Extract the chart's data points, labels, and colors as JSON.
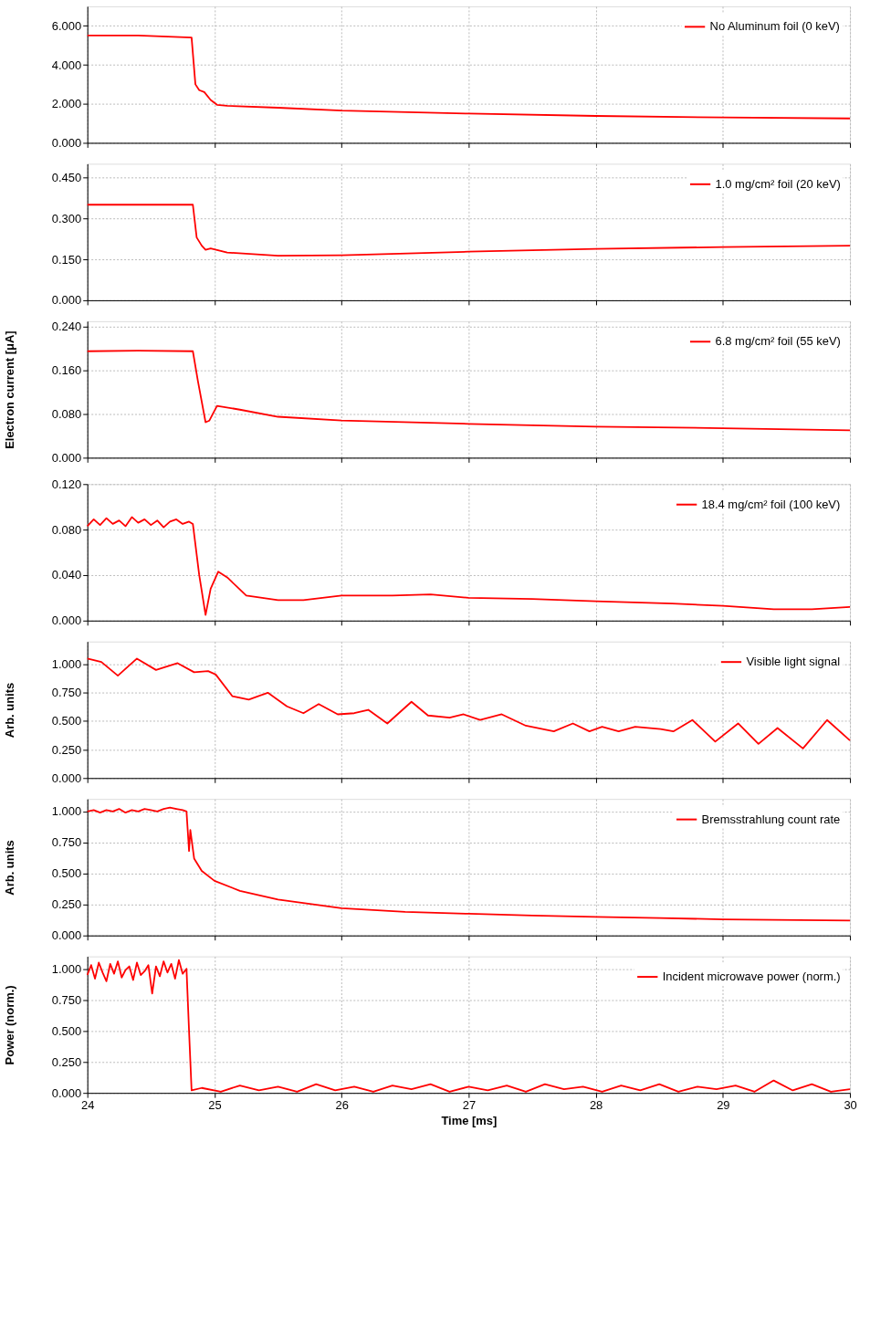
{
  "chart_data": [
    {
      "type": "line",
      "xlim": [
        24,
        30
      ],
      "xticks": [
        24,
        25,
        26,
        27,
        28,
        29,
        30
      ],
      "ylim": [
        0,
        7
      ],
      "yticks": [
        {
          "value": 0,
          "label": "0.000"
        },
        {
          "value": 2,
          "label": "2.000"
        },
        {
          "value": 4,
          "label": "4.000"
        },
        {
          "value": 6,
          "label": "6.000"
        }
      ],
      "grid": true,
      "legend": "top right",
      "tick_labels": "y",
      "series": [
        {
          "name": "No Aluminum foil (0 keV)",
          "color": "#ff0000",
          "x": [
            24,
            24.4,
            24.82,
            24.85,
            24.88,
            24.92,
            24.97,
            25.02,
            25.1,
            25.5,
            26,
            27,
            28,
            29,
            30
          ],
          "values": [
            5.5,
            5.5,
            5.4,
            3.0,
            2.7,
            2.6,
            2.2,
            1.95,
            1.9,
            1.8,
            1.65,
            1.5,
            1.38,
            1.3,
            1.25
          ]
        }
      ]
    },
    {
      "type": "line",
      "xlim": [
        24,
        30
      ],
      "xticks": [
        24,
        25,
        26,
        27,
        28,
        29,
        30
      ],
      "ylim": [
        0,
        0.5
      ],
      "yticks": [
        {
          "value": 0,
          "label": "0.000"
        },
        {
          "value": 0.15,
          "label": "0.150"
        },
        {
          "value": 0.3,
          "label": "0.300"
        },
        {
          "value": 0.45,
          "label": "0.450"
        }
      ],
      "grid": true,
      "legend": "top right",
      "tick_labels": "y",
      "series": [
        {
          "name": "1.0 mg/cm² foil (20 keV)",
          "color": "#ff0000",
          "x": [
            24,
            24.4,
            24.83,
            24.86,
            24.9,
            24.93,
            24.97,
            25.1,
            25.5,
            26,
            27,
            28,
            29,
            30
          ],
          "values": [
            0.35,
            0.35,
            0.35,
            0.23,
            0.2,
            0.185,
            0.19,
            0.175,
            0.163,
            0.165,
            0.178,
            0.188,
            0.195,
            0.2
          ]
        }
      ]
    },
    {
      "type": "line",
      "xlim": [
        24,
        30
      ],
      "xticks": [
        24,
        25,
        26,
        27,
        28,
        29,
        30
      ],
      "ylim": [
        0,
        0.25
      ],
      "yticks": [
        {
          "value": 0,
          "label": "0.000"
        },
        {
          "value": 0.08,
          "label": "0.080"
        },
        {
          "value": 0.16,
          "label": "0.160"
        },
        {
          "value": 0.24,
          "label": "0.240"
        }
      ],
      "grid": true,
      "legend": "top right",
      "tick_labels": "y",
      "ylabel": "Electron current [μA]",
      "series": [
        {
          "name": "6.8 mg/cm² foil (55 keV)",
          "color": "#ff0000",
          "x": [
            24,
            24.4,
            24.83,
            24.87,
            24.93,
            24.96,
            25.02,
            25.2,
            25.5,
            26,
            27,
            28,
            29,
            30
          ],
          "values": [
            0.195,
            0.196,
            0.195,
            0.14,
            0.065,
            0.068,
            0.095,
            0.088,
            0.075,
            0.068,
            0.062,
            0.057,
            0.054,
            0.05
          ]
        }
      ]
    },
    {
      "type": "line",
      "xlim": [
        24,
        30
      ],
      "xticks": [
        24,
        25,
        26,
        27,
        28,
        29,
        30
      ],
      "ylim": [
        0,
        0.12
      ],
      "yticks": [
        {
          "value": 0,
          "label": "0.000"
        },
        {
          "value": 0.04,
          "label": "0.040"
        },
        {
          "value": 0.08,
          "label": "0.080"
        },
        {
          "value": 0.12,
          "label": "0.120"
        }
      ],
      "grid": true,
      "legend": "top right",
      "tick_labels": "y",
      "series": [
        {
          "name": "18.4 mg/cm² foil (100 keV)",
          "color": "#ff0000",
          "x": [
            24,
            24.05,
            24.1,
            24.15,
            24.2,
            24.25,
            24.3,
            24.35,
            24.4,
            24.45,
            24.5,
            24.55,
            24.6,
            24.65,
            24.7,
            24.75,
            24.8,
            24.83,
            24.88,
            24.93,
            24.97,
            25.03,
            25.1,
            25.25,
            25.5,
            25.7,
            26,
            26.4,
            26.7,
            27,
            27.5,
            28,
            28.6,
            29,
            29.4,
            29.7,
            30
          ],
          "values": [
            0.083,
            0.089,
            0.084,
            0.09,
            0.085,
            0.088,
            0.083,
            0.091,
            0.086,
            0.089,
            0.084,
            0.088,
            0.082,
            0.087,
            0.089,
            0.085,
            0.087,
            0.085,
            0.04,
            0.005,
            0.028,
            0.043,
            0.038,
            0.022,
            0.018,
            0.018,
            0.022,
            0.022,
            0.023,
            0.02,
            0.019,
            0.017,
            0.015,
            0.013,
            0.01,
            0.01,
            0.012
          ]
        }
      ]
    },
    {
      "type": "line",
      "xlim": [
        24,
        30
      ],
      "xticks": [
        24,
        25,
        26,
        27,
        28,
        29,
        30
      ],
      "ylim": [
        0,
        1.2
      ],
      "yticks": [
        {
          "value": 0,
          "label": "0.000"
        },
        {
          "value": 0.25,
          "label": "0.250"
        },
        {
          "value": 0.5,
          "label": "0.500"
        },
        {
          "value": 0.75,
          "label": "0.750"
        },
        {
          "value": 1,
          "label": "1.000"
        }
      ],
      "grid": true,
      "legend": "top right",
      "tick_labels": "y",
      "ylabel": "Arb. units",
      "series": [
        {
          "name": "Visible light signal",
          "color": "#ff0000",
          "x": [
            24,
            24.11,
            24.24,
            24.39,
            24.54,
            24.71,
            24.84,
            24.95,
            25.01,
            25.14,
            25.27,
            25.42,
            25.57,
            25.7,
            25.82,
            25.97,
            26.1,
            26.21,
            26.36,
            26.55,
            26.68,
            26.85,
            26.96,
            27.09,
            27.26,
            27.45,
            27.67,
            27.82,
            27.95,
            28.05,
            28.18,
            28.31,
            28.51,
            28.61,
            28.76,
            28.94,
            29.12,
            29.28,
            29.43,
            29.63,
            29.82,
            30
          ],
          "values": [
            1.05,
            1.02,
            0.9,
            1.05,
            0.95,
            1.01,
            0.93,
            0.94,
            0.91,
            0.72,
            0.69,
            0.75,
            0.63,
            0.57,
            0.65,
            0.56,
            0.57,
            0.6,
            0.48,
            0.67,
            0.55,
            0.53,
            0.56,
            0.51,
            0.56,
            0.46,
            0.41,
            0.48,
            0.41,
            0.45,
            0.41,
            0.45,
            0.43,
            0.41,
            0.51,
            0.32,
            0.48,
            0.3,
            0.44,
            0.26,
            0.51,
            0.33
          ]
        }
      ]
    },
    {
      "type": "line",
      "xlim": [
        24,
        30
      ],
      "xticks": [
        24,
        25,
        26,
        27,
        28,
        29,
        30
      ],
      "ylim": [
        0,
        1.1
      ],
      "yticks": [
        {
          "value": 0,
          "label": "0.000"
        },
        {
          "value": 0.25,
          "label": "0.250"
        },
        {
          "value": 0.5,
          "label": "0.500"
        },
        {
          "value": 0.75,
          "label": "0.750"
        },
        {
          "value": 1,
          "label": "1.000"
        }
      ],
      "grid": true,
      "legend": "top right",
      "tick_labels": "y",
      "ylabel": "Arb. units",
      "series": [
        {
          "name": "Bremsstrahlung count rate",
          "color": "#ff0000",
          "x": [
            24,
            24.05,
            24.1,
            24.15,
            24.2,
            24.25,
            24.3,
            24.35,
            24.4,
            24.45,
            24.5,
            24.55,
            24.6,
            24.65,
            24.7,
            24.75,
            24.78,
            24.8,
            24.81,
            24.84,
            24.9,
            25,
            25.2,
            25.5,
            26,
            26.5,
            27,
            27.5,
            28,
            28.5,
            29,
            30
          ],
          "values": [
            1.0,
            1.01,
            0.99,
            1.01,
            1.0,
            1.02,
            0.99,
            1.01,
            1.0,
            1.02,
            1.01,
            1.0,
            1.02,
            1.03,
            1.02,
            1.01,
            1.0,
            0.68,
            0.85,
            0.62,
            0.52,
            0.44,
            0.36,
            0.29,
            0.22,
            0.19,
            0.175,
            0.16,
            0.15,
            0.14,
            0.13,
            0.12
          ]
        }
      ]
    },
    {
      "type": "line",
      "xlim": [
        24,
        30
      ],
      "xticks": [
        24,
        25,
        26,
        27,
        28,
        29,
        30
      ],
      "ylim": [
        0,
        1.1
      ],
      "yticks": [
        {
          "value": 0,
          "label": "0.000"
        },
        {
          "value": 0.25,
          "label": "0.250"
        },
        {
          "value": 0.5,
          "label": "0.500"
        },
        {
          "value": 0.75,
          "label": "0.750"
        },
        {
          "value": 1,
          "label": "1.000"
        }
      ],
      "grid": true,
      "legend": "top right",
      "ylabel": "Power (norm.)",
      "xlabel": "Time [ms]",
      "series": [
        {
          "name": "Incident microwave power (norm.)",
          "color": "#ff0000",
          "x": [
            24.0,
            24.03,
            24.06,
            24.09,
            24.12,
            24.15,
            24.18,
            24.21,
            24.24,
            24.27,
            24.3,
            24.33,
            24.36,
            24.39,
            24.42,
            24.45,
            24.48,
            24.51,
            24.54,
            24.57,
            24.6,
            24.63,
            24.66,
            24.69,
            24.72,
            24.75,
            24.78,
            24.8,
            24.82,
            24.9,
            25.05,
            25.2,
            25.35,
            25.5,
            25.65,
            25.8,
            25.95,
            26.1,
            26.25,
            26.4,
            26.55,
            26.7,
            26.85,
            27.0,
            27.15,
            27.3,
            27.45,
            27.6,
            27.75,
            27.9,
            28.05,
            28.2,
            28.35,
            28.5,
            28.65,
            28.8,
            28.95,
            29.1,
            29.25,
            29.4,
            29.55,
            29.7,
            29.85,
            30.0
          ],
          "values": [
            0.95,
            1.03,
            0.92,
            1.05,
            0.97,
            0.9,
            1.04,
            0.96,
            1.06,
            0.93,
            0.99,
            1.02,
            0.91,
            1.05,
            0.95,
            0.98,
            1.03,
            0.8,
            1.02,
            0.94,
            1.06,
            0.97,
            1.04,
            0.92,
            1.07,
            0.96,
            1.0,
            0.5,
            0.02,
            0.04,
            0.01,
            0.06,
            0.02,
            0.05,
            0.01,
            0.07,
            0.02,
            0.05,
            0.01,
            0.06,
            0.03,
            0.07,
            0.01,
            0.05,
            0.02,
            0.06,
            0.01,
            0.07,
            0.03,
            0.05,
            0.01,
            0.06,
            0.02,
            0.07,
            0.01,
            0.05,
            0.03,
            0.06,
            0.01,
            0.1,
            0.02,
            0.07,
            0.01,
            0.03
          ]
        }
      ]
    }
  ]
}
